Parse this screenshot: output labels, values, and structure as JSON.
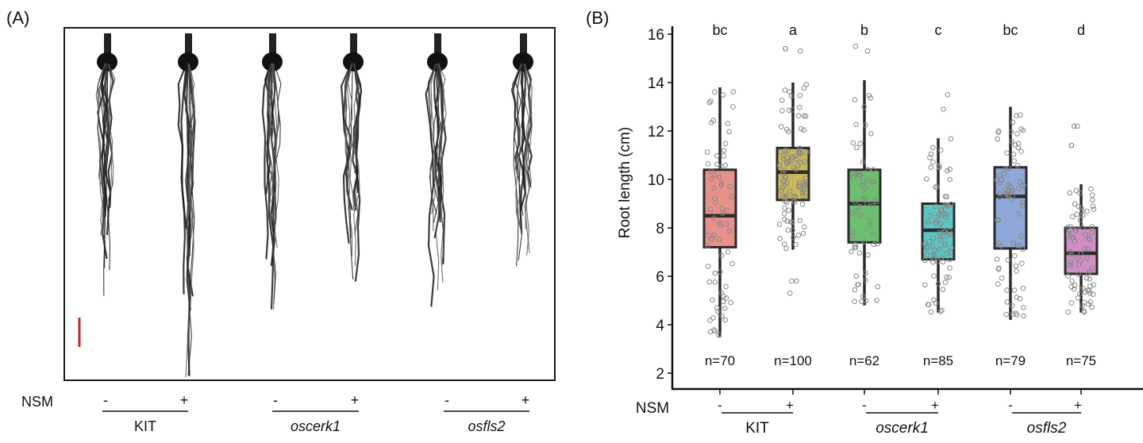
{
  "panel_a": {
    "label": "(A)",
    "treatment_label": "NSM",
    "samples": [
      {
        "genotype": "KIT",
        "nsm": "-"
      },
      {
        "genotype": "KIT",
        "nsm": "+"
      },
      {
        "genotype": "oscerk1",
        "nsm": "-"
      },
      {
        "genotype": "oscerk1",
        "nsm": "+"
      },
      {
        "genotype": "osfls2",
        "nsm": "-"
      },
      {
        "genotype": "osfls2",
        "nsm": "+"
      }
    ],
    "groups": [
      {
        "name": "KIT",
        "italic": false
      },
      {
        "name": "oscerk1",
        "italic": true
      },
      {
        "name": "osfls2",
        "italic": true
      }
    ],
    "scale_bar_color": "#c0272d"
  },
  "panel_b": {
    "label": "(B)"
  },
  "chart_data": {
    "type": "box",
    "title": "",
    "xlabel": "",
    "ylabel": "Root length (cm)",
    "ylim": [
      1.3,
      16.3
    ],
    "yticks": [
      2,
      4,
      6,
      8,
      10,
      12,
      14,
      16
    ],
    "grid": false,
    "treatment_label": "NSM",
    "categories": [
      "KIT -",
      "KIT +",
      "oscerk1 -",
      "oscerk1 +",
      "osfls2 -",
      "osfls2 +"
    ],
    "nsm": [
      "-",
      "+",
      "-",
      "+",
      "-",
      "+"
    ],
    "groups": [
      {
        "name": "KIT",
        "italic": false,
        "members": [
          0,
          1
        ]
      },
      {
        "name": "oscerk1",
        "italic": true,
        "members": [
          2,
          3
        ]
      },
      {
        "name": "osfls2",
        "italic": true,
        "members": [
          4,
          5
        ]
      }
    ],
    "significance_letters": [
      "bc",
      "a",
      "b",
      "c",
      "bc",
      "d"
    ],
    "n_labels": [
      "n=70",
      "n=100",
      "n=62",
      "n=85",
      "n=79",
      "n=75"
    ],
    "colors": [
      "#e8918a",
      "#c9b95a",
      "#6cbf70",
      "#5cc4c2",
      "#8fa8d8",
      "#d08ec4"
    ],
    "boxes": [
      {
        "whisker_low": 3.5,
        "q1": 7.2,
        "median": 8.5,
        "q3": 10.4,
        "whisker_high": 13.8
      },
      {
        "whisker_low": 7.1,
        "q1": 9.15,
        "median": 10.3,
        "q3": 11.3,
        "whisker_high": 14.0
      },
      {
        "whisker_low": 4.8,
        "q1": 7.4,
        "median": 9.0,
        "q3": 10.4,
        "whisker_high": 14.1
      },
      {
        "whisker_low": 4.5,
        "q1": 6.7,
        "median": 7.9,
        "q3": 9.0,
        "whisker_high": 11.7
      },
      {
        "whisker_low": 4.2,
        "q1": 7.15,
        "median": 9.3,
        "q3": 10.5,
        "whisker_high": 13.0
      },
      {
        "whisker_low": 4.5,
        "q1": 6.1,
        "median": 6.95,
        "q3": 8.0,
        "whisker_high": 9.8
      }
    ],
    "outliers": [
      [],
      [
        15.4,
        15.4,
        15.3,
        5.8,
        5.8,
        5.3
      ],
      [
        15.5,
        15.3
      ],
      [
        13.5,
        12.9
      ],
      [],
      [
        12.2,
        12.2,
        11.4,
        11.4
      ]
    ]
  }
}
